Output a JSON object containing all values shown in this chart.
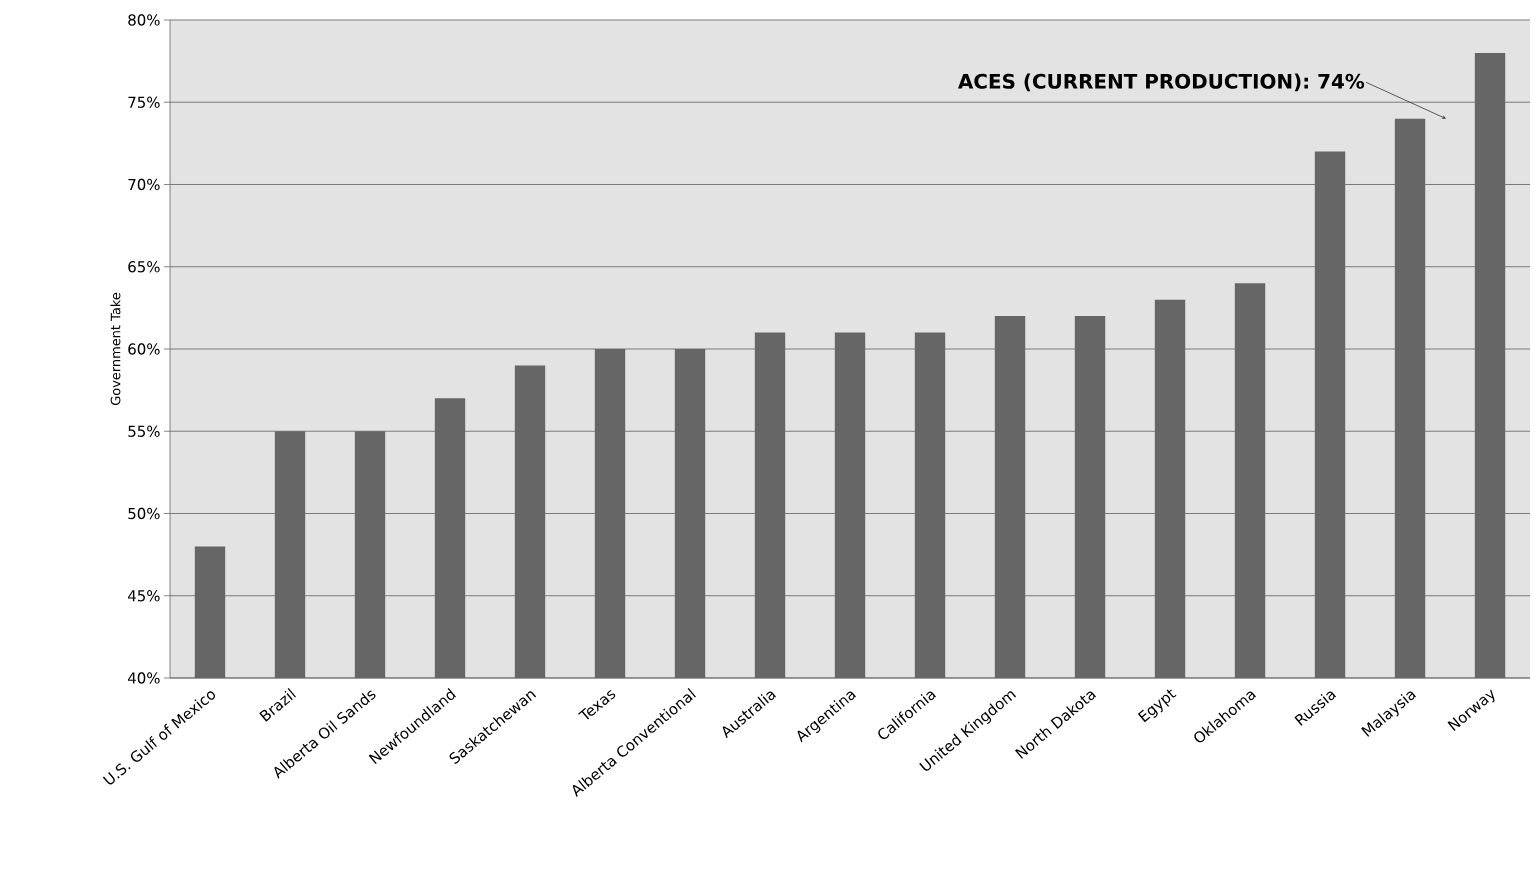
{
  "chart_data": {
    "type": "bar",
    "ylabel": "Government Take",
    "categories": [
      "U.S. Gulf of Mexico",
      "Brazil",
      "Alberta Oil Sands",
      "Newfoundland",
      "Saskatchewan",
      "Texas",
      "Alberta Conventional",
      "Australia",
      "Argentina",
      "California",
      "United Kingdom",
      "North Dakota",
      "Egypt",
      "Oklahoma",
      "Russia",
      "Malaysia",
      "Norway"
    ],
    "values": [
      48,
      55,
      55,
      57,
      59,
      60,
      60,
      61,
      61,
      61,
      62,
      62,
      63,
      64,
      72,
      74,
      78
    ],
    "color": "#666666",
    "ylim": [
      40,
      80
    ],
    "yticks": [
      {
        "value": 40,
        "label": "40%"
      },
      {
        "value": 45,
        "label": "45%"
      },
      {
        "value": 50,
        "label": "50%"
      },
      {
        "value": 55,
        "label": "55%"
      },
      {
        "value": 60,
        "label": "60%"
      },
      {
        "value": 65,
        "label": "65%"
      },
      {
        "value": 70,
        "label": "70%"
      },
      {
        "value": 75,
        "label": "75%"
      },
      {
        "value": 80,
        "label": "80%"
      }
    ],
    "grid": "y",
    "annotations": [
      {
        "text": "ACES (CURRENT PRODUCTION): 74%",
        "x": "Malaysia",
        "y": 74
      }
    ]
  }
}
